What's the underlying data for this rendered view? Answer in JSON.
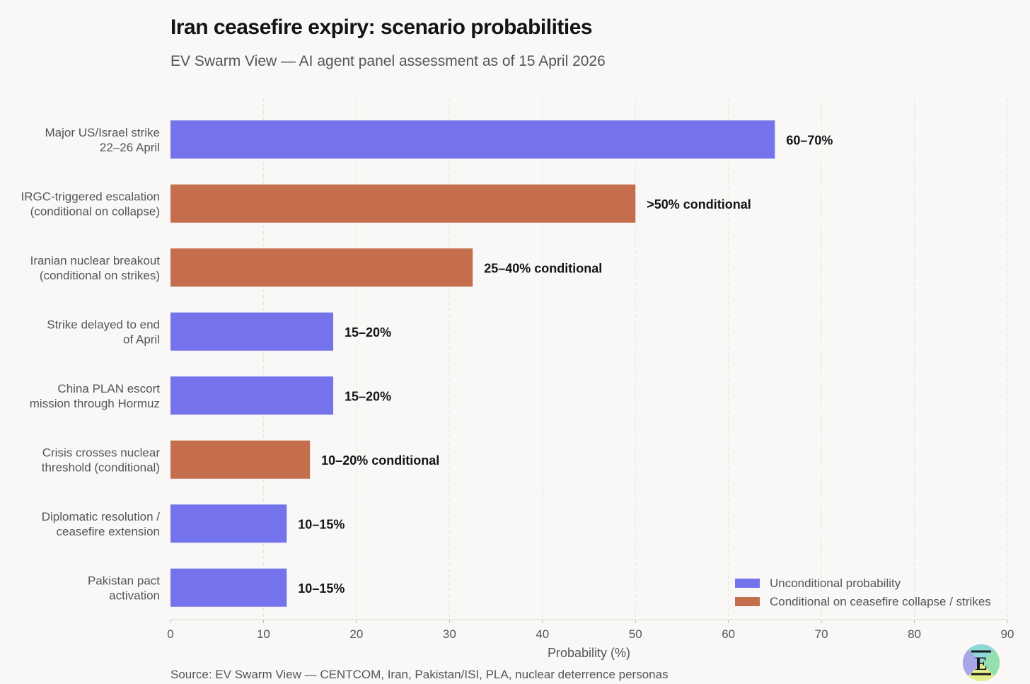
{
  "header": {
    "title": "Iran ceasefire expiry: scenario probabilities",
    "subtitle": "EV Swarm View — AI agent panel assessment as of 15 April 2026"
  },
  "footer": {
    "source": "Source: EV Swarm View — CENTCOM, Iran, Pakistan/ISI, PLA, nuclear deterrence personas",
    "logo_letter": "E"
  },
  "colors": {
    "unconditional": "#7573ec",
    "conditional": "#c46e4d",
    "axis_text": "#555555",
    "bar_label": "#141414",
    "grid": "#e6e4e0"
  },
  "chart_data": {
    "type": "bar",
    "orientation": "horizontal",
    "title": "Iran ceasefire expiry: scenario probabilities",
    "subtitle": "EV Swarm View — AI agent panel assessment as of 15 April 2026",
    "xlabel": "Probability (%)",
    "ylabel": "",
    "xlim": [
      0,
      90
    ],
    "xticks": [
      0,
      10,
      20,
      30,
      40,
      50,
      60,
      70,
      80,
      90
    ],
    "grid": "vertical dashed",
    "legend_position": "bottom-right",
    "series": [
      {
        "key": "unconditional",
        "name": "Unconditional probability"
      },
      {
        "key": "conditional",
        "name": "Conditional on ceasefire collapse / strikes"
      }
    ],
    "bars": [
      {
        "category": [
          "Major US/Israel strike",
          "22–26 April"
        ],
        "value": 65,
        "label": "60–70%",
        "series": "unconditional"
      },
      {
        "category": [
          "IRGC-triggered escalation",
          "(conditional on collapse)"
        ],
        "value": 50,
        "label": ">50% conditional",
        "series": "conditional"
      },
      {
        "category": [
          "Iranian nuclear breakout",
          "(conditional on strikes)"
        ],
        "value": 32.5,
        "label": "25–40% conditional",
        "series": "conditional"
      },
      {
        "category": [
          "Strike delayed to end",
          "of April"
        ],
        "value": 17.5,
        "label": "15–20%",
        "series": "unconditional"
      },
      {
        "category": [
          "China PLAN escort",
          "mission through Hormuz"
        ],
        "value": 17.5,
        "label": "15–20%",
        "series": "unconditional"
      },
      {
        "category": [
          "Crisis crosses nuclear",
          "threshold (conditional)"
        ],
        "value": 15,
        "label": "10–20% conditional",
        "series": "conditional"
      },
      {
        "category": [
          "Diplomatic resolution /",
          "ceasefire extension"
        ],
        "value": 12.5,
        "label": "10–15%",
        "series": "unconditional"
      },
      {
        "category": [
          "Pakistan pact",
          "activation"
        ],
        "value": 12.5,
        "label": "10–15%",
        "series": "unconditional"
      }
    ]
  }
}
